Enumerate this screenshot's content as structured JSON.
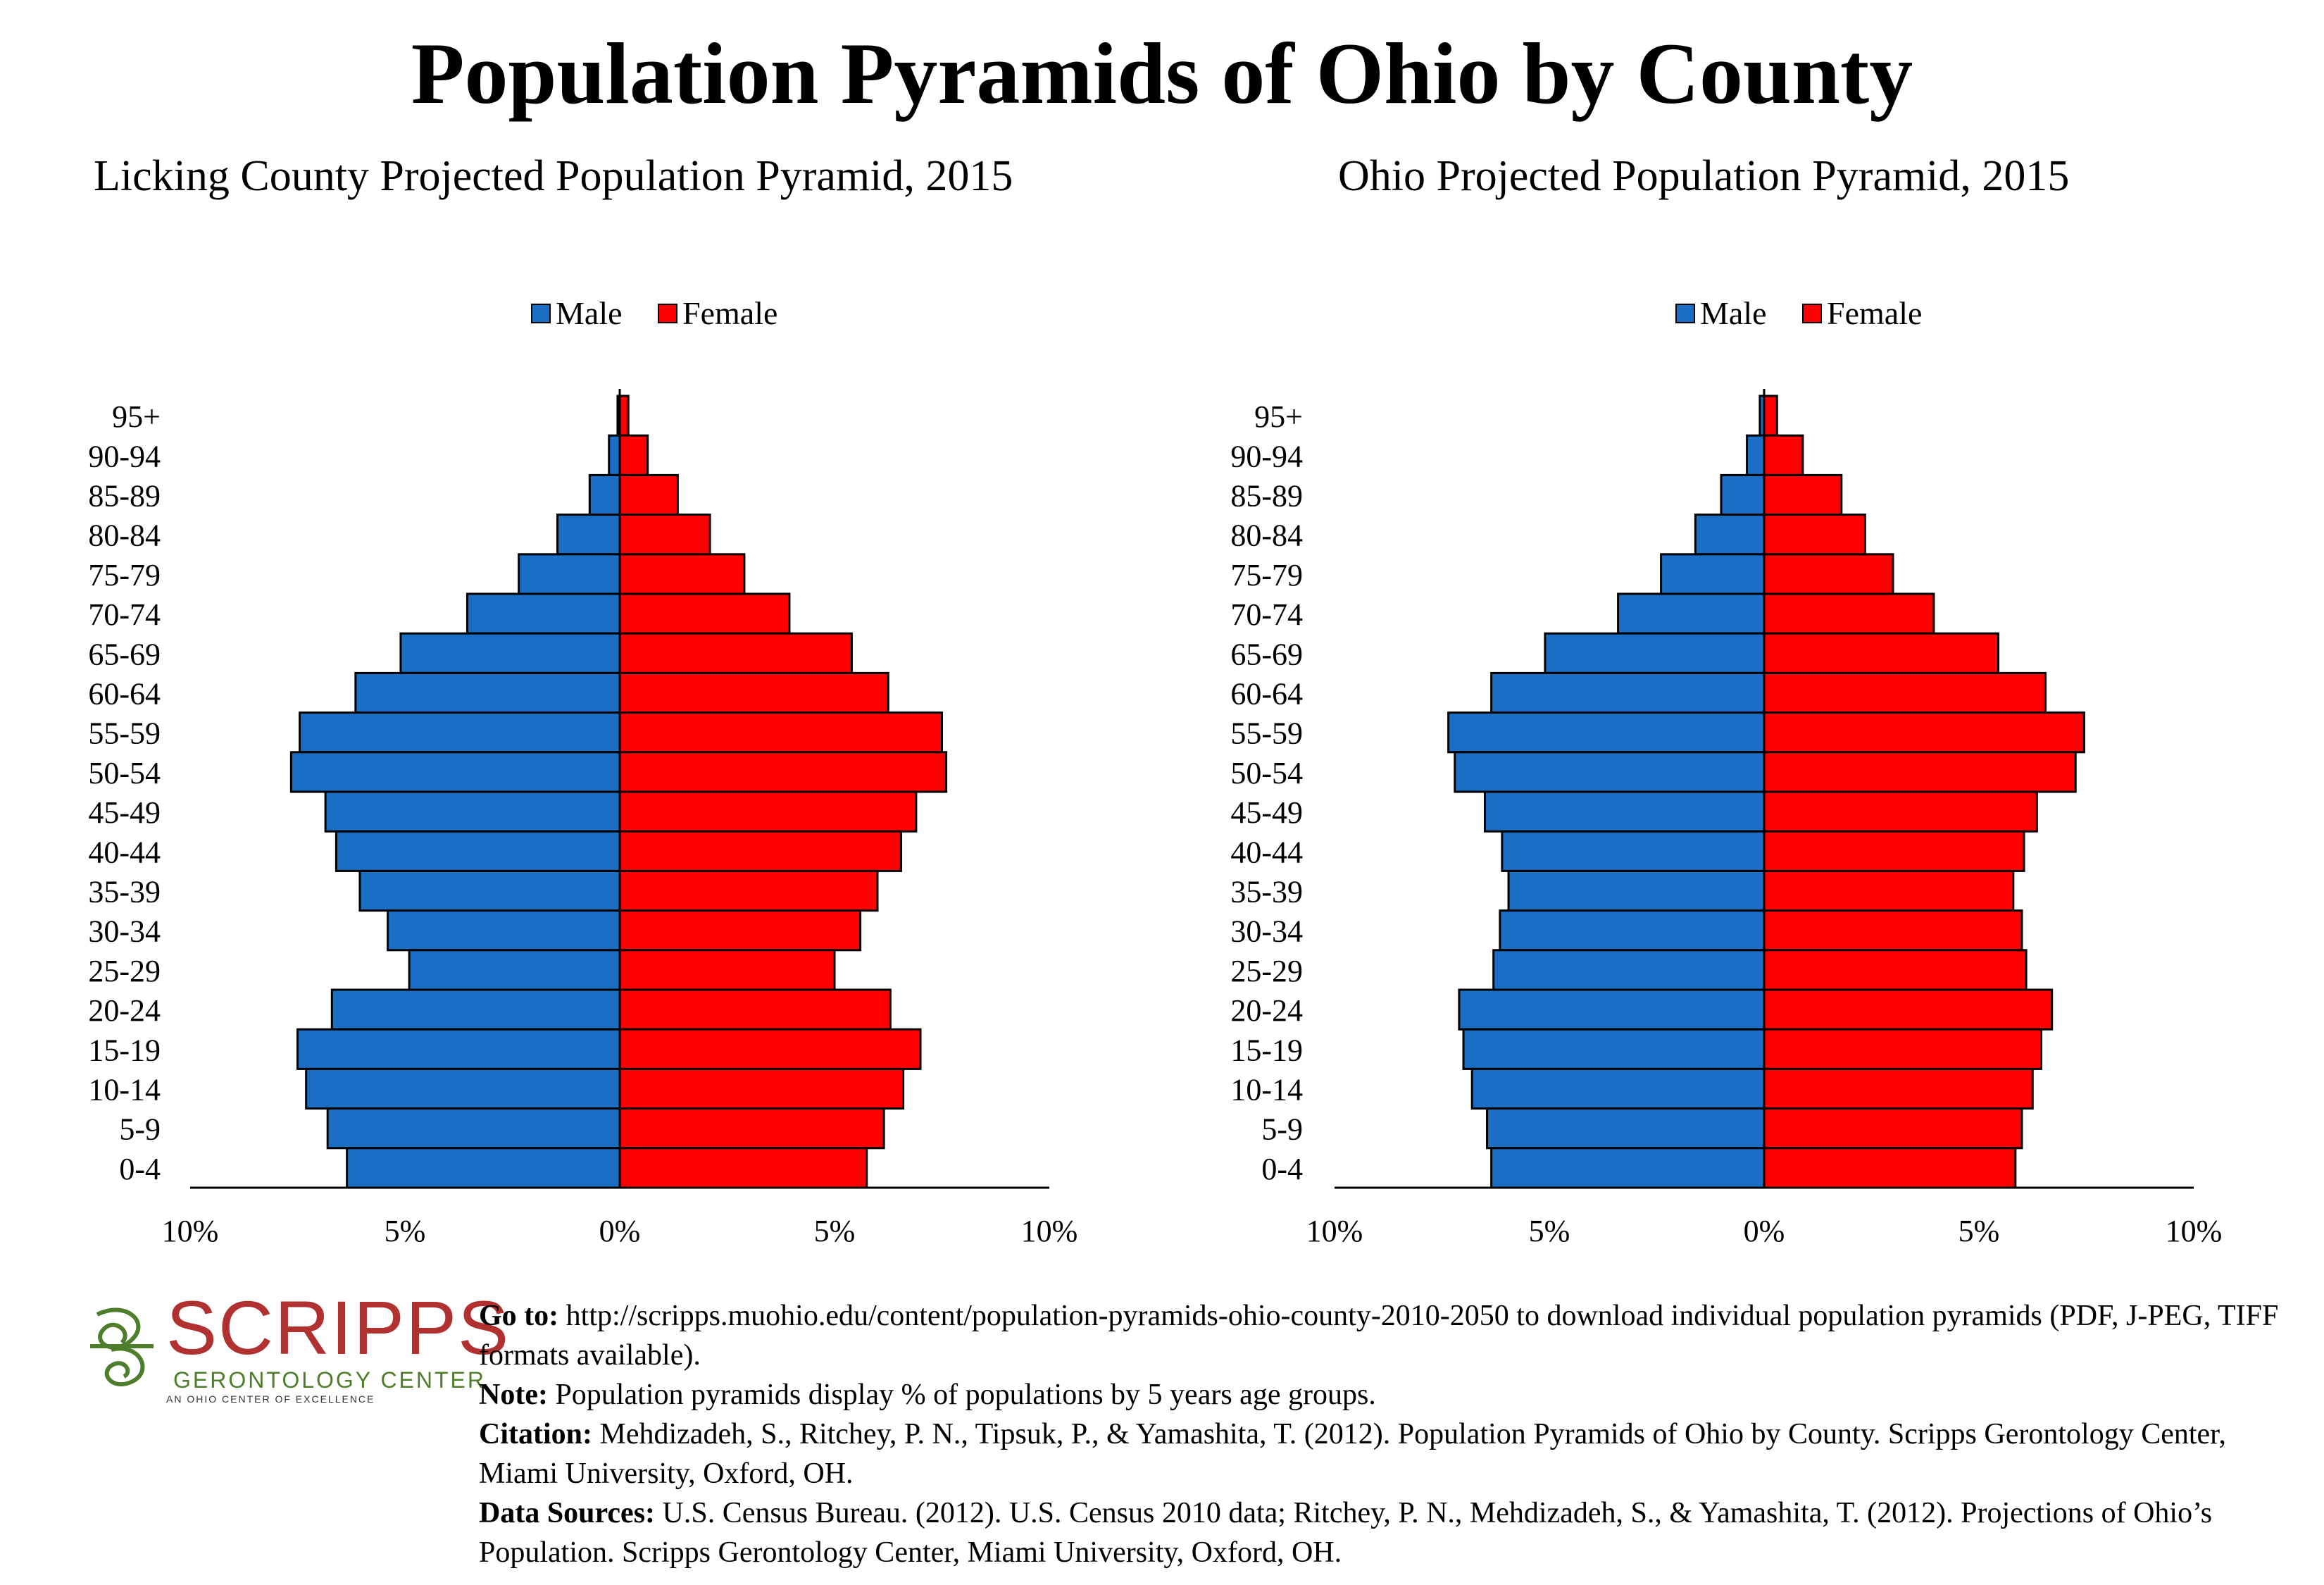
{
  "title": "Population Pyramids of Ohio by County",
  "colors": {
    "male": "#1a6fc4",
    "female": "#ff0000",
    "logo_red": "#b0312f",
    "logo_green": "#4e7d2b"
  },
  "chart_data": [
    {
      "type": "bar",
      "orientation": "horizontal-pyramid",
      "title": "Licking County Projected Population Pyramid, 2015",
      "legend": {
        "position": "top-center",
        "entries": [
          "Male",
          "Female"
        ]
      },
      "categories": [
        "95+",
        "90-94",
        "85-89",
        "80-84",
        "75-79",
        "70-74",
        "65-69",
        "60-64",
        "55-59",
        "50-54",
        "45-49",
        "40-44",
        "35-39",
        "30-34",
        "25-29",
        "20-24",
        "15-19",
        "10-14",
        "5-9",
        "0-4"
      ],
      "series": [
        {
          "name": "Male",
          "values": [
            0.05,
            0.25,
            0.7,
            1.45,
            2.35,
            3.55,
            5.1,
            6.15,
            7.45,
            7.65,
            6.85,
            6.6,
            6.05,
            5.4,
            4.9,
            6.7,
            7.5,
            7.3,
            6.8,
            6.35
          ]
        },
        {
          "name": "Female",
          "values": [
            0.2,
            0.65,
            1.35,
            2.1,
            2.9,
            3.95,
            5.4,
            6.25,
            7.5,
            7.6,
            6.9,
            6.55,
            6.0,
            5.6,
            5.0,
            6.3,
            7.0,
            6.6,
            6.15,
            5.75
          ]
        }
      ],
      "xlim": [
        -10,
        10
      ],
      "x_ticks": [
        "10%",
        "5%",
        "0%",
        "5%",
        "10%"
      ],
      "grid": false
    },
    {
      "type": "bar",
      "orientation": "horizontal-pyramid",
      "title": "Ohio Projected Population Pyramid, 2015",
      "legend": {
        "position": "top-center",
        "entries": [
          "Male",
          "Female"
        ]
      },
      "categories": [
        "95+",
        "90-94",
        "85-89",
        "80-84",
        "75-79",
        "70-74",
        "65-69",
        "60-64",
        "55-59",
        "50-54",
        "45-49",
        "40-44",
        "35-39",
        "30-34",
        "25-29",
        "20-24",
        "15-19",
        "10-14",
        "5-9",
        "0-4"
      ],
      "series": [
        {
          "name": "Male",
          "values": [
            0.1,
            0.4,
            1.0,
            1.6,
            2.4,
            3.4,
            5.1,
            6.35,
            7.35,
            7.2,
            6.5,
            6.1,
            5.95,
            6.15,
            6.3,
            7.1,
            7.0,
            6.8,
            6.45,
            6.35
          ]
        },
        {
          "name": "Female",
          "values": [
            0.3,
            0.9,
            1.8,
            2.35,
            3.0,
            3.95,
            5.45,
            6.55,
            7.45,
            7.25,
            6.35,
            6.05,
            5.8,
            6.0,
            6.1,
            6.7,
            6.45,
            6.25,
            6.0,
            5.85
          ]
        }
      ],
      "xlim": [
        -10,
        10
      ],
      "x_ticks": [
        "10%",
        "5%",
        "0%",
        "5%",
        "10%"
      ],
      "grid": false
    }
  ],
  "logo": {
    "name": "SCRIPPS",
    "subtitle": "GERONTOLOGY CENTER",
    "tagline": "AN OHIO CENTER OF EXCELLENCE"
  },
  "footer": {
    "goto_label": "Go to:",
    "goto_text": "http://scripps.muohio.edu/content/population-pyramids-ohio-county-2010-2050 to download individual population pyramids (PDF, J-PEG, TIFF formats available).",
    "note_label": "Note:",
    "note_text": "Population pyramids display % of populations by 5 years age groups.",
    "citation_label": "Citation:",
    "citation_text": "Mehdizadeh, S., Ritchey, P. N., Tipsuk, P., & Yamashita, T. (2012). Population Pyramids of Ohio by County. Scripps Gerontology Center, Miami University, Oxford, OH.",
    "sources_label": "Data Sources:",
    "sources_text": "U.S. Census Bureau. (2012). U.S. Census 2010 data; Ritchey, P. N., Mehdizadeh, S., & Yamashita, T. (2012). Projections of Ohio’s Population. Scripps Gerontology Center, Miami University, Oxford, OH."
  }
}
